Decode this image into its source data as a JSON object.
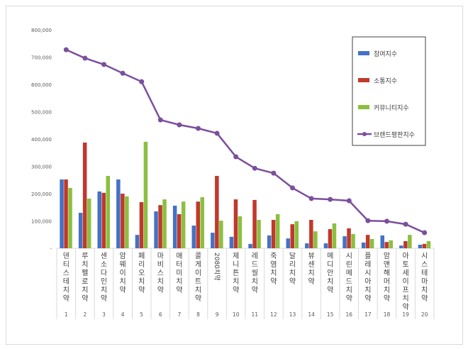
{
  "chart_data": {
    "type": "bar",
    "categories": [
      "덴티스테치약",
      "루치펠로치약",
      "센소다인치약",
      "암웨이치약",
      "페리오치약",
      "마비스치약",
      "애터미치약",
      "콜게이트치약",
      "2080치약",
      "제니튼치약",
      "레드씰치약",
      "죽염치약",
      "달리치약",
      "뷰센치약",
      "메디안치약",
      "시린메드치약",
      "플레시아치약",
      "암앤해머치약",
      "아토세이프치약",
      "시스테마치약"
    ],
    "ranks": [
      "1",
      "2",
      "3",
      "4",
      "5",
      "6",
      "7",
      "8",
      "9",
      "10",
      "11",
      "12",
      "13",
      "14",
      "15",
      "16",
      "17",
      "18",
      "19",
      "20"
    ],
    "ylim": [
      0,
      800000
    ],
    "yticks": [
      0,
      100000,
      200000,
      300000,
      400000,
      500000,
      600000,
      700000,
      800000
    ],
    "ytick_labels": [
      "-",
      "100,000",
      "200,000",
      "300,000",
      "400,000",
      "500,000",
      "600,000",
      "700,000",
      "800,000"
    ],
    "legend_position": "top-right",
    "grid": false,
    "series": [
      {
        "name": "참여지수",
        "type": "bar",
        "color": "#4472c4",
        "values": [
          252000,
          130000,
          208000,
          252000,
          49000,
          135000,
          156000,
          83000,
          57000,
          42000,
          16000,
          47000,
          36000,
          18000,
          18000,
          44000,
          21000,
          47000,
          10000,
          13000
        ]
      },
      {
        "name": "소통지수",
        "type": "bar",
        "color": "#c0392b",
        "values": [
          252000,
          387000,
          203000,
          200000,
          169000,
          158000,
          125000,
          171000,
          265000,
          179000,
          177000,
          104000,
          88000,
          104000,
          70000,
          73000,
          49000,
          23000,
          26000,
          16000
        ]
      },
      {
        "name": "커뮤니티지수",
        "type": "bar",
        "color": "#8cbf3f",
        "values": [
          221000,
          182000,
          265000,
          190000,
          390000,
          179000,
          171000,
          187000,
          101000,
          117000,
          104000,
          125000,
          99000,
          62000,
          91000,
          52000,
          34000,
          29000,
          49000,
          26000
        ]
      },
      {
        "name": "브랜드평판지수",
        "type": "line",
        "color": "#7b4f9d",
        "values": [
          727000,
          696000,
          673000,
          641000,
          610000,
          470000,
          452000,
          439000,
          421000,
          335000,
          293000,
          275000,
          221000,
          182000,
          179000,
          174000,
          101000,
          99000,
          88000,
          57000
        ]
      }
    ]
  }
}
